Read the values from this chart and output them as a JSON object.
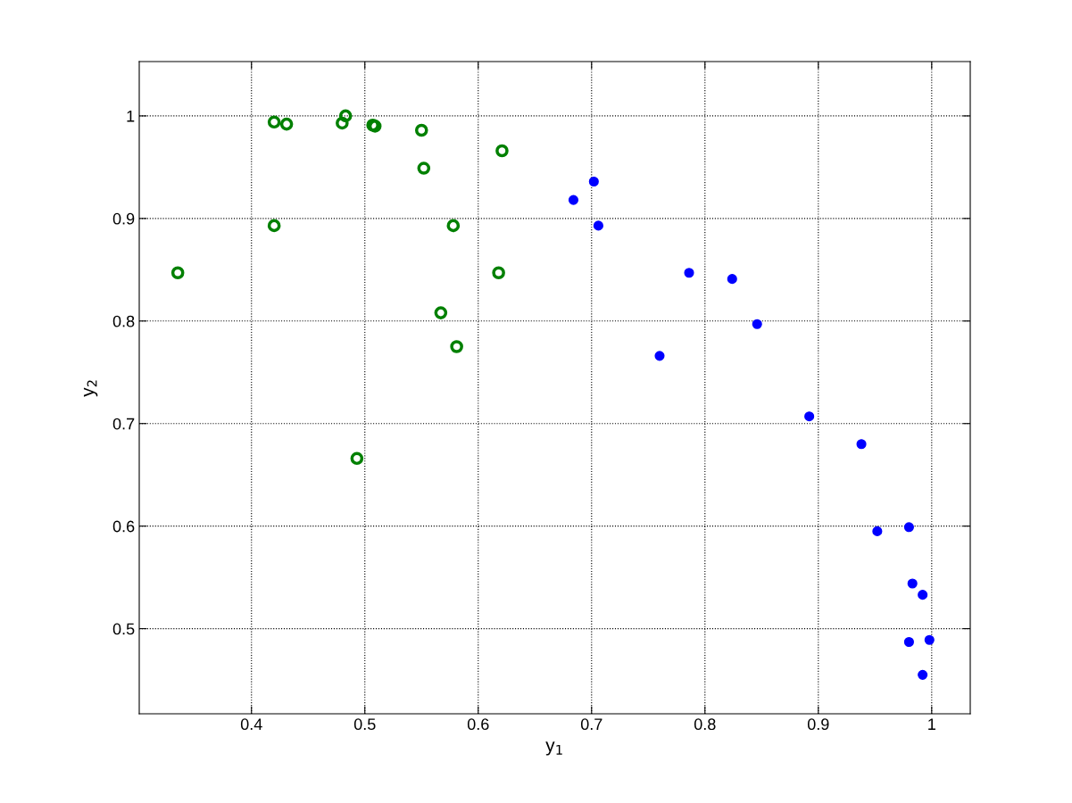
{
  "chart_data": {
    "type": "scatter",
    "xlabel": "y$_{1}$",
    "ylabel": "y$_{2}$",
    "xlim": [
      0.301,
      1.034
    ],
    "ylim": [
      0.417,
      1.053
    ],
    "xticks": [
      0.4,
      0.5,
      0.6,
      0.7,
      0.8,
      0.9,
      1
    ],
    "yticks": [
      0.5,
      0.6,
      0.7,
      0.8,
      0.9,
      1
    ],
    "grid": true,
    "marker": "circle",
    "series": [
      {
        "color": "#008000",
        "x": [
          0.42,
          0.431,
          0.48,
          0.483,
          0.507,
          0.509,
          0.55,
          0.552,
          0.621,
          0.42,
          0.578,
          0.335,
          0.618,
          0.567,
          0.581,
          0.493
        ],
        "values": [
          0.994,
          0.992,
          0.993,
          1.0,
          0.991,
          0.99,
          0.986,
          0.949,
          0.966,
          0.893,
          0.893,
          0.847,
          0.847,
          0.808,
          0.775,
          0.666
        ]
      },
      {
        "color": "#0000ff",
        "x": [
          0.684,
          0.702,
          0.706,
          0.76,
          0.786,
          0.824,
          0.846,
          0.892,
          0.938,
          0.952,
          0.98,
          0.983,
          0.992,
          0.98,
          0.998,
          0.992
        ],
        "values": [
          0.918,
          0.936,
          0.893,
          0.766,
          0.847,
          0.841,
          0.797,
          0.707,
          0.68,
          0.595,
          0.599,
          0.544,
          0.533,
          0.487,
          0.489,
          0.455
        ]
      }
    ]
  }
}
